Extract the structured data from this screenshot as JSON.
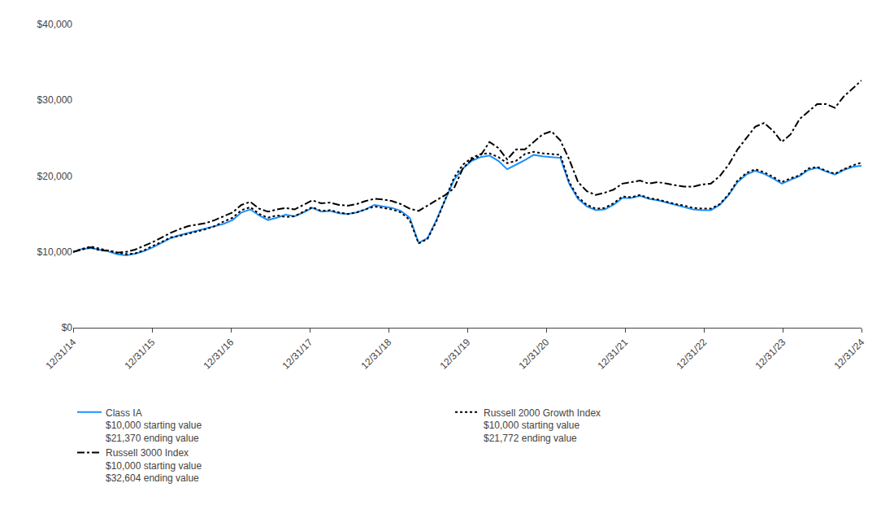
{
  "chart_data": {
    "type": "line",
    "xlim": [
      0,
      10
    ],
    "xticks": [
      {
        "value": 0,
        "label": "12/31/14"
      },
      {
        "value": 1,
        "label": "12/31/15"
      },
      {
        "value": 2,
        "label": "12/31/16"
      },
      {
        "value": 3,
        "label": "12/31/17"
      },
      {
        "value": 4,
        "label": "12/31/18"
      },
      {
        "value": 5,
        "label": "12/31/19"
      },
      {
        "value": 6,
        "label": "12/31/20"
      },
      {
        "value": 7,
        "label": "12/31/21"
      },
      {
        "value": 8,
        "label": "12/31/22"
      },
      {
        "value": 9,
        "label": "12/31/23"
      },
      {
        "value": 10,
        "label": "12/31/24"
      }
    ],
    "ylim": [
      0,
      40000
    ],
    "yticks": [
      {
        "value": 0,
        "label": "$0"
      },
      {
        "value": 10000,
        "label": "$10,000"
      },
      {
        "value": 20000,
        "label": "$20,000"
      },
      {
        "value": 30000,
        "label": "$30,000"
      },
      {
        "value": 40000,
        "label": "$40,000"
      }
    ],
    "grid": false,
    "legend": "bottom",
    "series": [
      {
        "name": "Class IA\n$10,000 starting value\n$21,370 ending value",
        "color": "#1E90FF",
        "line_style": "solid",
        "values": [
          10000,
          10380,
          10520,
          10270,
          10050,
          9680,
          9550,
          9750,
          10100,
          10600,
          11200,
          11800,
          12200,
          12500,
          12800,
          13100,
          13400,
          13700,
          14200,
          15200,
          15600,
          14800,
          14200,
          14500,
          14900,
          14700,
          15200,
          15800,
          15300,
          15400,
          15100,
          15000,
          15200,
          15600,
          16200,
          16000,
          15800,
          15400,
          14500,
          11200,
          11800,
          14200,
          16800,
          19500,
          21000,
          22000,
          22500,
          22700,
          22000,
          20900,
          21500,
          22100,
          22800,
          22600,
          22500,
          22400,
          19000,
          17000,
          16000,
          15500,
          15600,
          16200,
          17100,
          17100,
          17400,
          17000,
          16800,
          16500,
          16200,
          15900,
          15600,
          15500,
          15500,
          16200,
          17500,
          19200,
          20200,
          20700,
          20300,
          19700,
          19000,
          19500,
          20000,
          20800,
          21100,
          20600,
          20200,
          20800,
          21200,
          21370
        ]
      },
      {
        "name": "Russell 2000 Growth Index\n$10,000 starting value\n$21,772 ending value",
        "color": "#000000",
        "line_style": "dotted",
        "values": [
          10000,
          10400,
          10700,
          10400,
          10150,
          9900,
          9700,
          9800,
          10200,
          10800,
          11300,
          11900,
          12100,
          12400,
          12700,
          13000,
          13400,
          14000,
          14500,
          15500,
          15900,
          15000,
          14500,
          14800,
          14600,
          14700,
          15300,
          15900,
          15400,
          15500,
          15200,
          15000,
          15200,
          15600,
          16000,
          15800,
          15600,
          15200,
          14200,
          11100,
          11700,
          14000,
          16900,
          19800,
          21500,
          22400,
          22900,
          23000,
          22500,
          21700,
          22000,
          22900,
          23200,
          23000,
          22900,
          22800,
          19200,
          17200,
          16200,
          15700,
          15800,
          16400,
          17300,
          17200,
          17500,
          17100,
          16900,
          16600,
          16300,
          16100,
          15800,
          15700,
          15700,
          16300,
          17600,
          19400,
          20400,
          20900,
          20500,
          19900,
          19200,
          19700,
          20100,
          21000,
          21200,
          20700,
          20300,
          20900,
          21400,
          21772
        ]
      },
      {
        "name": "Russell 3000 Index\n$10,000 starting value\n$32,604 ending value",
        "color": "#000000",
        "line_style": "dashdot",
        "values": [
          10000,
          10300,
          10600,
          10200,
          10180,
          9900,
          10000,
          10300,
          10800,
          11300,
          11900,
          12500,
          13000,
          13400,
          13600,
          13800,
          14200,
          14700,
          15200,
          16200,
          16600,
          15700,
          15300,
          15600,
          15800,
          15600,
          16200,
          16800,
          16400,
          16500,
          16200,
          16100,
          16300,
          16700,
          17000,
          16900,
          16700,
          16300,
          15700,
          15400,
          16100,
          16800,
          17500,
          18400,
          21000,
          22200,
          22700,
          24500,
          23700,
          22200,
          23500,
          23500,
          24500,
          25500,
          25900,
          24700,
          22200,
          19200,
          18000,
          17500,
          17800,
          18200,
          19000,
          19200,
          19400,
          19000,
          19200,
          19000,
          18800,
          18600,
          18600,
          18900,
          19000,
          20000,
          21500,
          23500,
          25000,
          26500,
          27000,
          26000,
          24500,
          25500,
          27500,
          28500,
          29500,
          29500,
          29000,
          30500,
          31500,
          32604
        ]
      }
    ]
  }
}
